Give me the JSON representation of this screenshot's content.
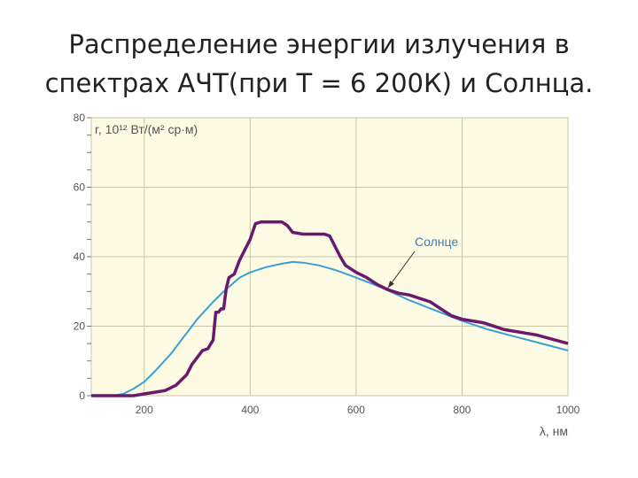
{
  "slide": {
    "title_line1": "Распределение энергии излучения в",
    "title_line2": "спектрах АЧТ(при Т = 6 200К) и Солнца."
  },
  "colors": {
    "background": "#fdfbe3",
    "grid": "#c9c6a8",
    "blackbody": "#3aa0d4",
    "sun": "#6a1a6e",
    "annotation": "#3a7bbf"
  },
  "chart_data": {
    "type": "line",
    "ylabel": "r, 10¹² Вт/(м² ср·м)",
    "xlabel": "λ, нм",
    "xlim": [
      100,
      1000
    ],
    "ylim": [
      0,
      80
    ],
    "x_ticks": [
      200,
      400,
      600,
      800,
      1000
    ],
    "x_tick_labels": [
      "200",
      "400",
      "600",
      "800",
      "1000"
    ],
    "y_ticks": [
      0,
      20,
      40,
      60,
      80
    ],
    "y_tick_labels": [
      "0",
      "20",
      "40",
      "60",
      "80"
    ],
    "grid": true,
    "annotation": {
      "text": "Солнце",
      "points_to": [
        660,
        31
      ]
    },
    "series": [
      {
        "name": "",
        "x": [
          100,
          140,
          160,
          180,
          200,
          220,
          250,
          280,
          300,
          330,
          350,
          380,
          400,
          430,
          460,
          480,
          500,
          530,
          560,
          600,
          650,
          700,
          750,
          800,
          850,
          900,
          950,
          1000
        ],
        "y": [
          0,
          0,
          0.5,
          2,
          4,
          7,
          12,
          18,
          22,
          27,
          30,
          34,
          35.5,
          37,
          38,
          38.5,
          38.3,
          37.5,
          36.2,
          34,
          31,
          27.5,
          24.5,
          21.5,
          19,
          17,
          15,
          13
        ]
      },
      {
        "name": "Солнце",
        "x": [
          100,
          180,
          200,
          220,
          240,
          260,
          280,
          290,
          300,
          310,
          320,
          330,
          335,
          340,
          345,
          350,
          355,
          360,
          370,
          380,
          390,
          400,
          410,
          420,
          440,
          460,
          470,
          480,
          500,
          520,
          540,
          550,
          560,
          570,
          580,
          600,
          620,
          640,
          660,
          680,
          700,
          720,
          740,
          760,
          780,
          800,
          840,
          880,
          900,
          940,
          1000
        ],
        "y": [
          0,
          0,
          0.5,
          1,
          1.5,
          3,
          6,
          9,
          11,
          13,
          13.5,
          16,
          24,
          24,
          25,
          25,
          31,
          34,
          35,
          39,
          42,
          45,
          49.5,
          50,
          50,
          50,
          49,
          47,
          46.5,
          46.5,
          46.5,
          46,
          43,
          40,
          37.5,
          35.5,
          34,
          32,
          30.5,
          29.5,
          29,
          28,
          27,
          25,
          23,
          22,
          21,
          19,
          18.5,
          17.5,
          15
        ]
      }
    ]
  }
}
